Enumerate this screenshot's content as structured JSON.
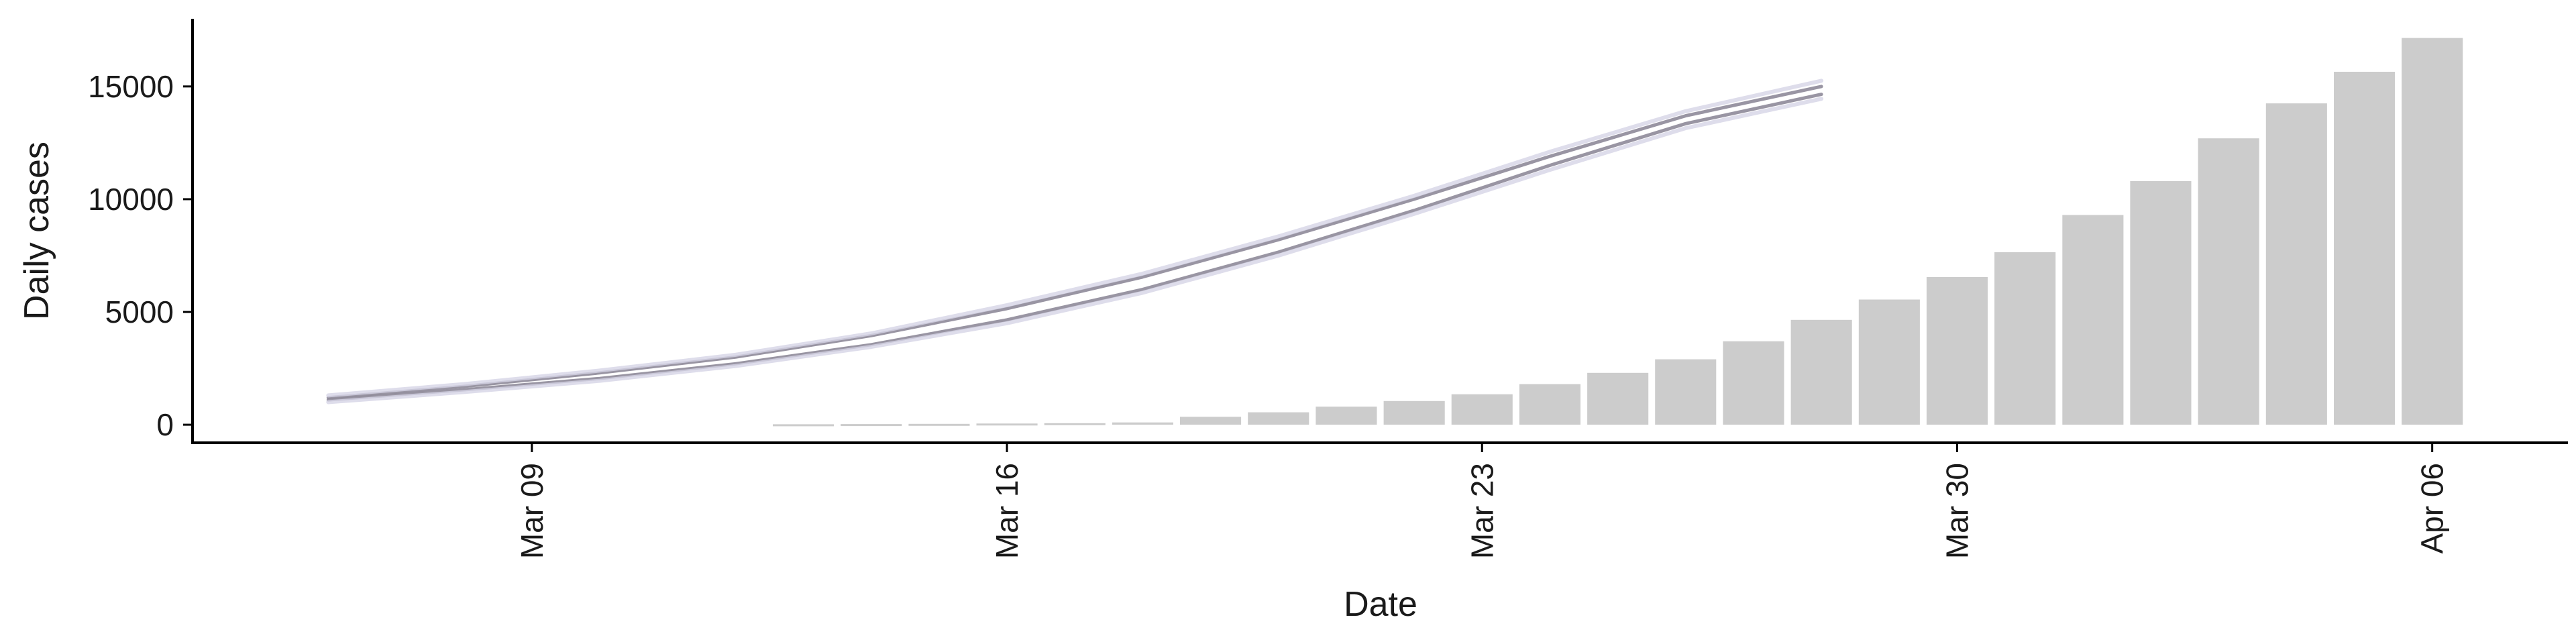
{
  "chart_data": {
    "type": "bar",
    "title": "",
    "xlabel": "Date",
    "ylabel": "Daily cases",
    "x_range": [
      "2020-03-04",
      "2020-04-08"
    ],
    "ylim": [
      -800,
      18000
    ],
    "y_ticks": [
      0,
      5000,
      10000,
      15000
    ],
    "y_tick_labels": [
      "0",
      "5000",
      "10000",
      "15000"
    ],
    "x_ticks": [
      "2020-03-09",
      "2020-03-16",
      "2020-03-23",
      "2020-03-30",
      "2020-04-06"
    ],
    "x_tick_labels": [
      "Mar 09",
      "Mar 16",
      "Mar 23",
      "Mar 30",
      "Apr 06"
    ],
    "grid": false,
    "legend": "none",
    "bar_color": "#cccccc",
    "line_color": "#8e8a99",
    "line_band_color": "#d6d5e6",
    "bars": {
      "dates": [
        "2020-03-13",
        "2020-03-14",
        "2020-03-15",
        "2020-03-16",
        "2020-03-17",
        "2020-03-18",
        "2020-03-19",
        "2020-03-20",
        "2020-03-21",
        "2020-03-22",
        "2020-03-23",
        "2020-03-24",
        "2020-03-25",
        "2020-03-26",
        "2020-03-27",
        "2020-03-28",
        "2020-03-29",
        "2020-03-30",
        "2020-03-31",
        "2020-04-01",
        "2020-04-02",
        "2020-04-03",
        "2020-04-04",
        "2020-04-05",
        "2020-04-06"
      ],
      "values": [
        20,
        30,
        40,
        55,
        70,
        100,
        350,
        550,
        800,
        1050,
        1350,
        1800,
        2300,
        2900,
        3700,
        4650,
        5550,
        6550,
        7650,
        9300,
        10800,
        12700,
        14250,
        15650,
        17150
      ]
    },
    "series": [
      {
        "dates": [
          "2020-03-06",
          "2020-03-08",
          "2020-03-10",
          "2020-03-12",
          "2020-03-14",
          "2020-03-16",
          "2020-03-18",
          "2020-03-20",
          "2020-03-22",
          "2020-03-24",
          "2020-03-26",
          "2020-03-28"
        ],
        "values": [
          1200,
          1700,
          2300,
          3000,
          3950,
          5150,
          6550,
          8200,
          10000,
          11900,
          13700,
          15000
        ]
      },
      {
        "dates": [
          "2020-03-06",
          "2020-03-08",
          "2020-03-10",
          "2020-03-12",
          "2020-03-14",
          "2020-03-16",
          "2020-03-18",
          "2020-03-20",
          "2020-03-22",
          "2020-03-24",
          "2020-03-26",
          "2020-03-28"
        ],
        "values": [
          1100,
          1550,
          2050,
          2700,
          3550,
          4650,
          6000,
          7650,
          9500,
          11500,
          13350,
          14650
        ]
      },
      {
        "dates": [
          "2020-03-06",
          "2020-03-08",
          "2020-03-10",
          "2020-03-12",
          "2020-03-14",
          "2020-03-16",
          "2020-03-18",
          "2020-03-20",
          "2020-03-22",
          "2020-03-24",
          "2020-03-26",
          "2020-03-28"
        ],
        "values": [
          1300,
          1800,
          2400,
          3100,
          4050,
          5300,
          6700,
          8350,
          10150,
          12100,
          13900,
          15250
        ]
      },
      {
        "dates": [
          "2020-03-06",
          "2020-03-08",
          "2020-03-10",
          "2020-03-12",
          "2020-03-14",
          "2020-03-16",
          "2020-03-18",
          "2020-03-20",
          "2020-03-22",
          "2020-03-24",
          "2020-03-26",
          "2020-03-28"
        ],
        "values": [
          1000,
          1450,
          1950,
          2600,
          3450,
          4500,
          5850,
          7500,
          9350,
          11300,
          13150,
          14450
        ]
      }
    ]
  }
}
